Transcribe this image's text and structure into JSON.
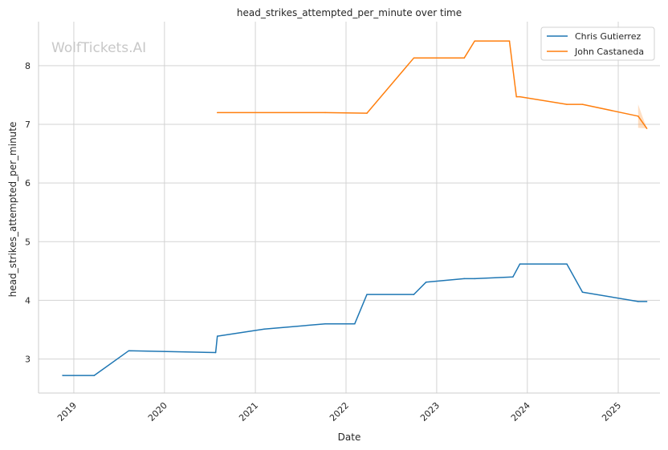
{
  "chart_data": {
    "type": "line",
    "title": "head_strikes_attempted_per_minute over time",
    "xlabel": "Date",
    "ylabel": "head_strikes_attempted_per_minute",
    "watermark": "WolfTickets.AI",
    "x_ticks": [
      "2019",
      "2020",
      "2021",
      "2022",
      "2023",
      "2024",
      "2025"
    ],
    "y_ticks": [
      "3",
      "4",
      "5",
      "6",
      "7",
      "8"
    ],
    "xlim": [
      "2018-08-12",
      "2025-06-18"
    ],
    "ylim": [
      2.42,
      8.75
    ],
    "grid": true,
    "legend_position": "top-right",
    "colors": {
      "Chris Gutierrez": "#1f77b4",
      "John Castaneda": "#ff7f0e"
    },
    "series": [
      {
        "name": "Chris Gutierrez",
        "points": [
          [
            "2018-11-17",
            2.72
          ],
          [
            "2019-03-24",
            2.72
          ],
          [
            "2019-08-10",
            3.14
          ],
          [
            "2020-07-25",
            3.11
          ],
          [
            "2020-08-01",
            3.39
          ],
          [
            "2021-02-06",
            3.51
          ],
          [
            "2021-10-09",
            3.6
          ],
          [
            "2022-02-05",
            3.6
          ],
          [
            "2022-03-26",
            4.1
          ],
          [
            "2022-10-01",
            4.1
          ],
          [
            "2022-11-19",
            4.31
          ],
          [
            "2023-04-22",
            4.37
          ],
          [
            "2023-06-03",
            4.37
          ],
          [
            "2023-11-04",
            4.4
          ],
          [
            "2023-12-02",
            4.62
          ],
          [
            "2024-06-08",
            4.62
          ],
          [
            "2024-08-10",
            4.14
          ],
          [
            "2025-03-22",
            3.98
          ],
          [
            "2025-04-26",
            3.98
          ]
        ]
      },
      {
        "name": "John Castaneda",
        "points": [
          [
            "2020-08-01",
            7.2
          ],
          [
            "2021-10-09",
            7.2
          ],
          [
            "2022-03-26",
            7.19
          ],
          [
            "2022-10-01",
            8.13
          ],
          [
            "2023-04-22",
            8.13
          ],
          [
            "2023-06-03",
            8.42
          ],
          [
            "2023-10-21",
            8.42
          ],
          [
            "2023-11-18",
            7.47
          ],
          [
            "2023-12-02",
            7.47
          ],
          [
            "2024-06-08",
            7.34
          ],
          [
            "2024-08-10",
            7.34
          ],
          [
            "2025-03-22",
            7.14
          ],
          [
            "2025-04-26",
            6.93
          ]
        ],
        "band": [
          [
            "2025-03-22",
            6.94,
            7.34
          ],
          [
            "2025-04-26",
            6.93,
            6.93
          ]
        ]
      }
    ]
  }
}
